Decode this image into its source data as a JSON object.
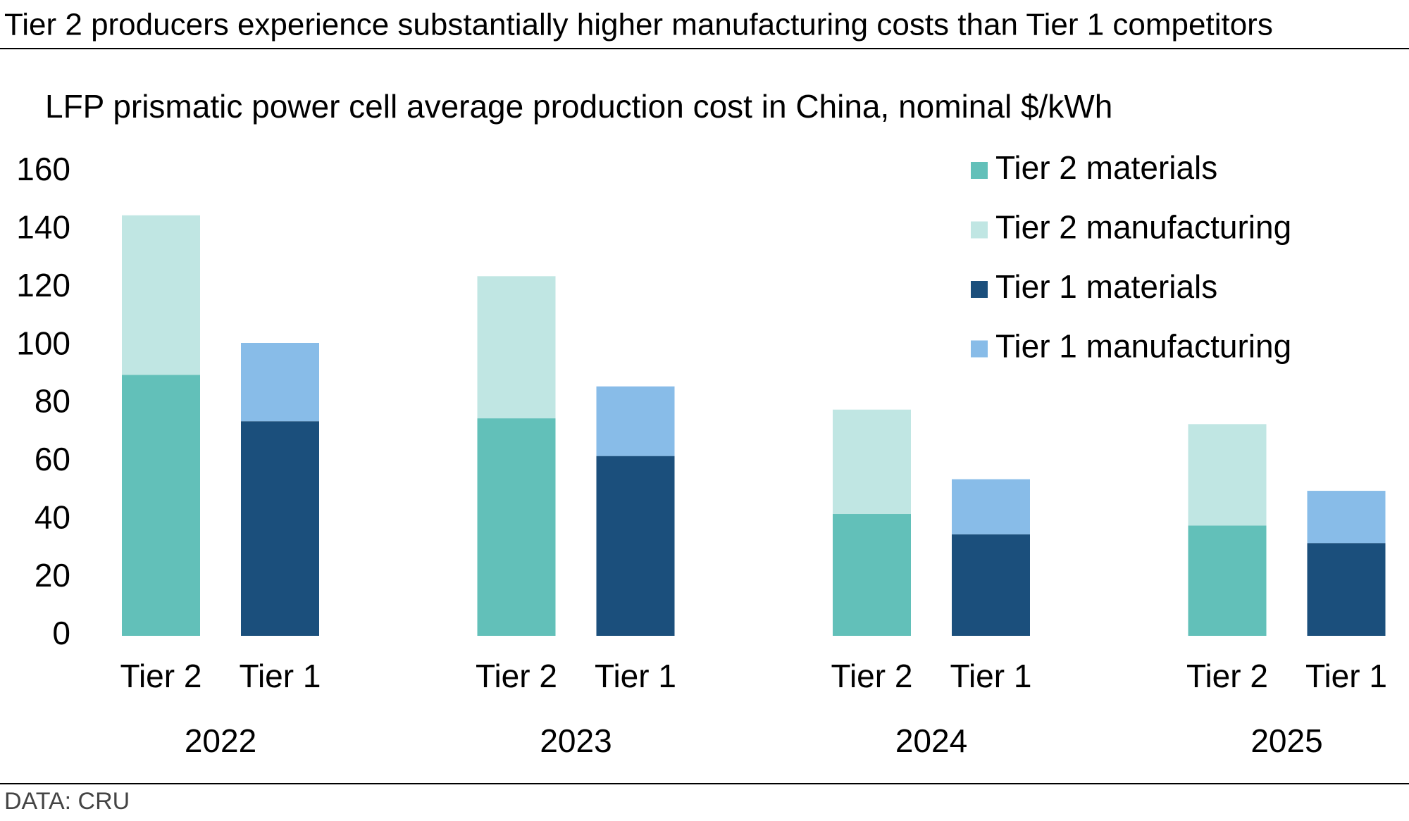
{
  "chart_data": {
    "type": "grouped_stacked_bar",
    "title": "Tier 2 producers experience substantially higher manufacturing costs than Tier 1 competitors",
    "subtitle": "LFP prismatic power cell average production cost in China, nominal $/kWh",
    "source": "DATA: CRU",
    "categories": [
      "2022",
      "2023",
      "2024",
      "2025"
    ],
    "stacks": [
      {
        "name": "Tier 2",
        "series": [
          {
            "name": "Tier 2 materials",
            "color": "#62c0b9",
            "values": [
              90,
              75,
              42,
              38
            ]
          },
          {
            "name": "Tier 2 manufacturing",
            "color": "#c0e6e3",
            "values": [
              55,
              49,
              36,
              35
            ]
          }
        ]
      },
      {
        "name": "Tier 1",
        "series": [
          {
            "name": "Tier 1 materials",
            "color": "#1b4f7c",
            "values": [
              74,
              62,
              35,
              32
            ]
          },
          {
            "name": "Tier 1 manufacturing",
            "color": "#88bce8",
            "values": [
              27,
              24,
              19,
              18
            ]
          }
        ]
      }
    ],
    "ylim": [
      0,
      160
    ],
    "yticks": [
      0,
      20,
      40,
      60,
      80,
      100,
      120,
      140,
      160
    ],
    "grid": false,
    "legend": "top-right"
  }
}
